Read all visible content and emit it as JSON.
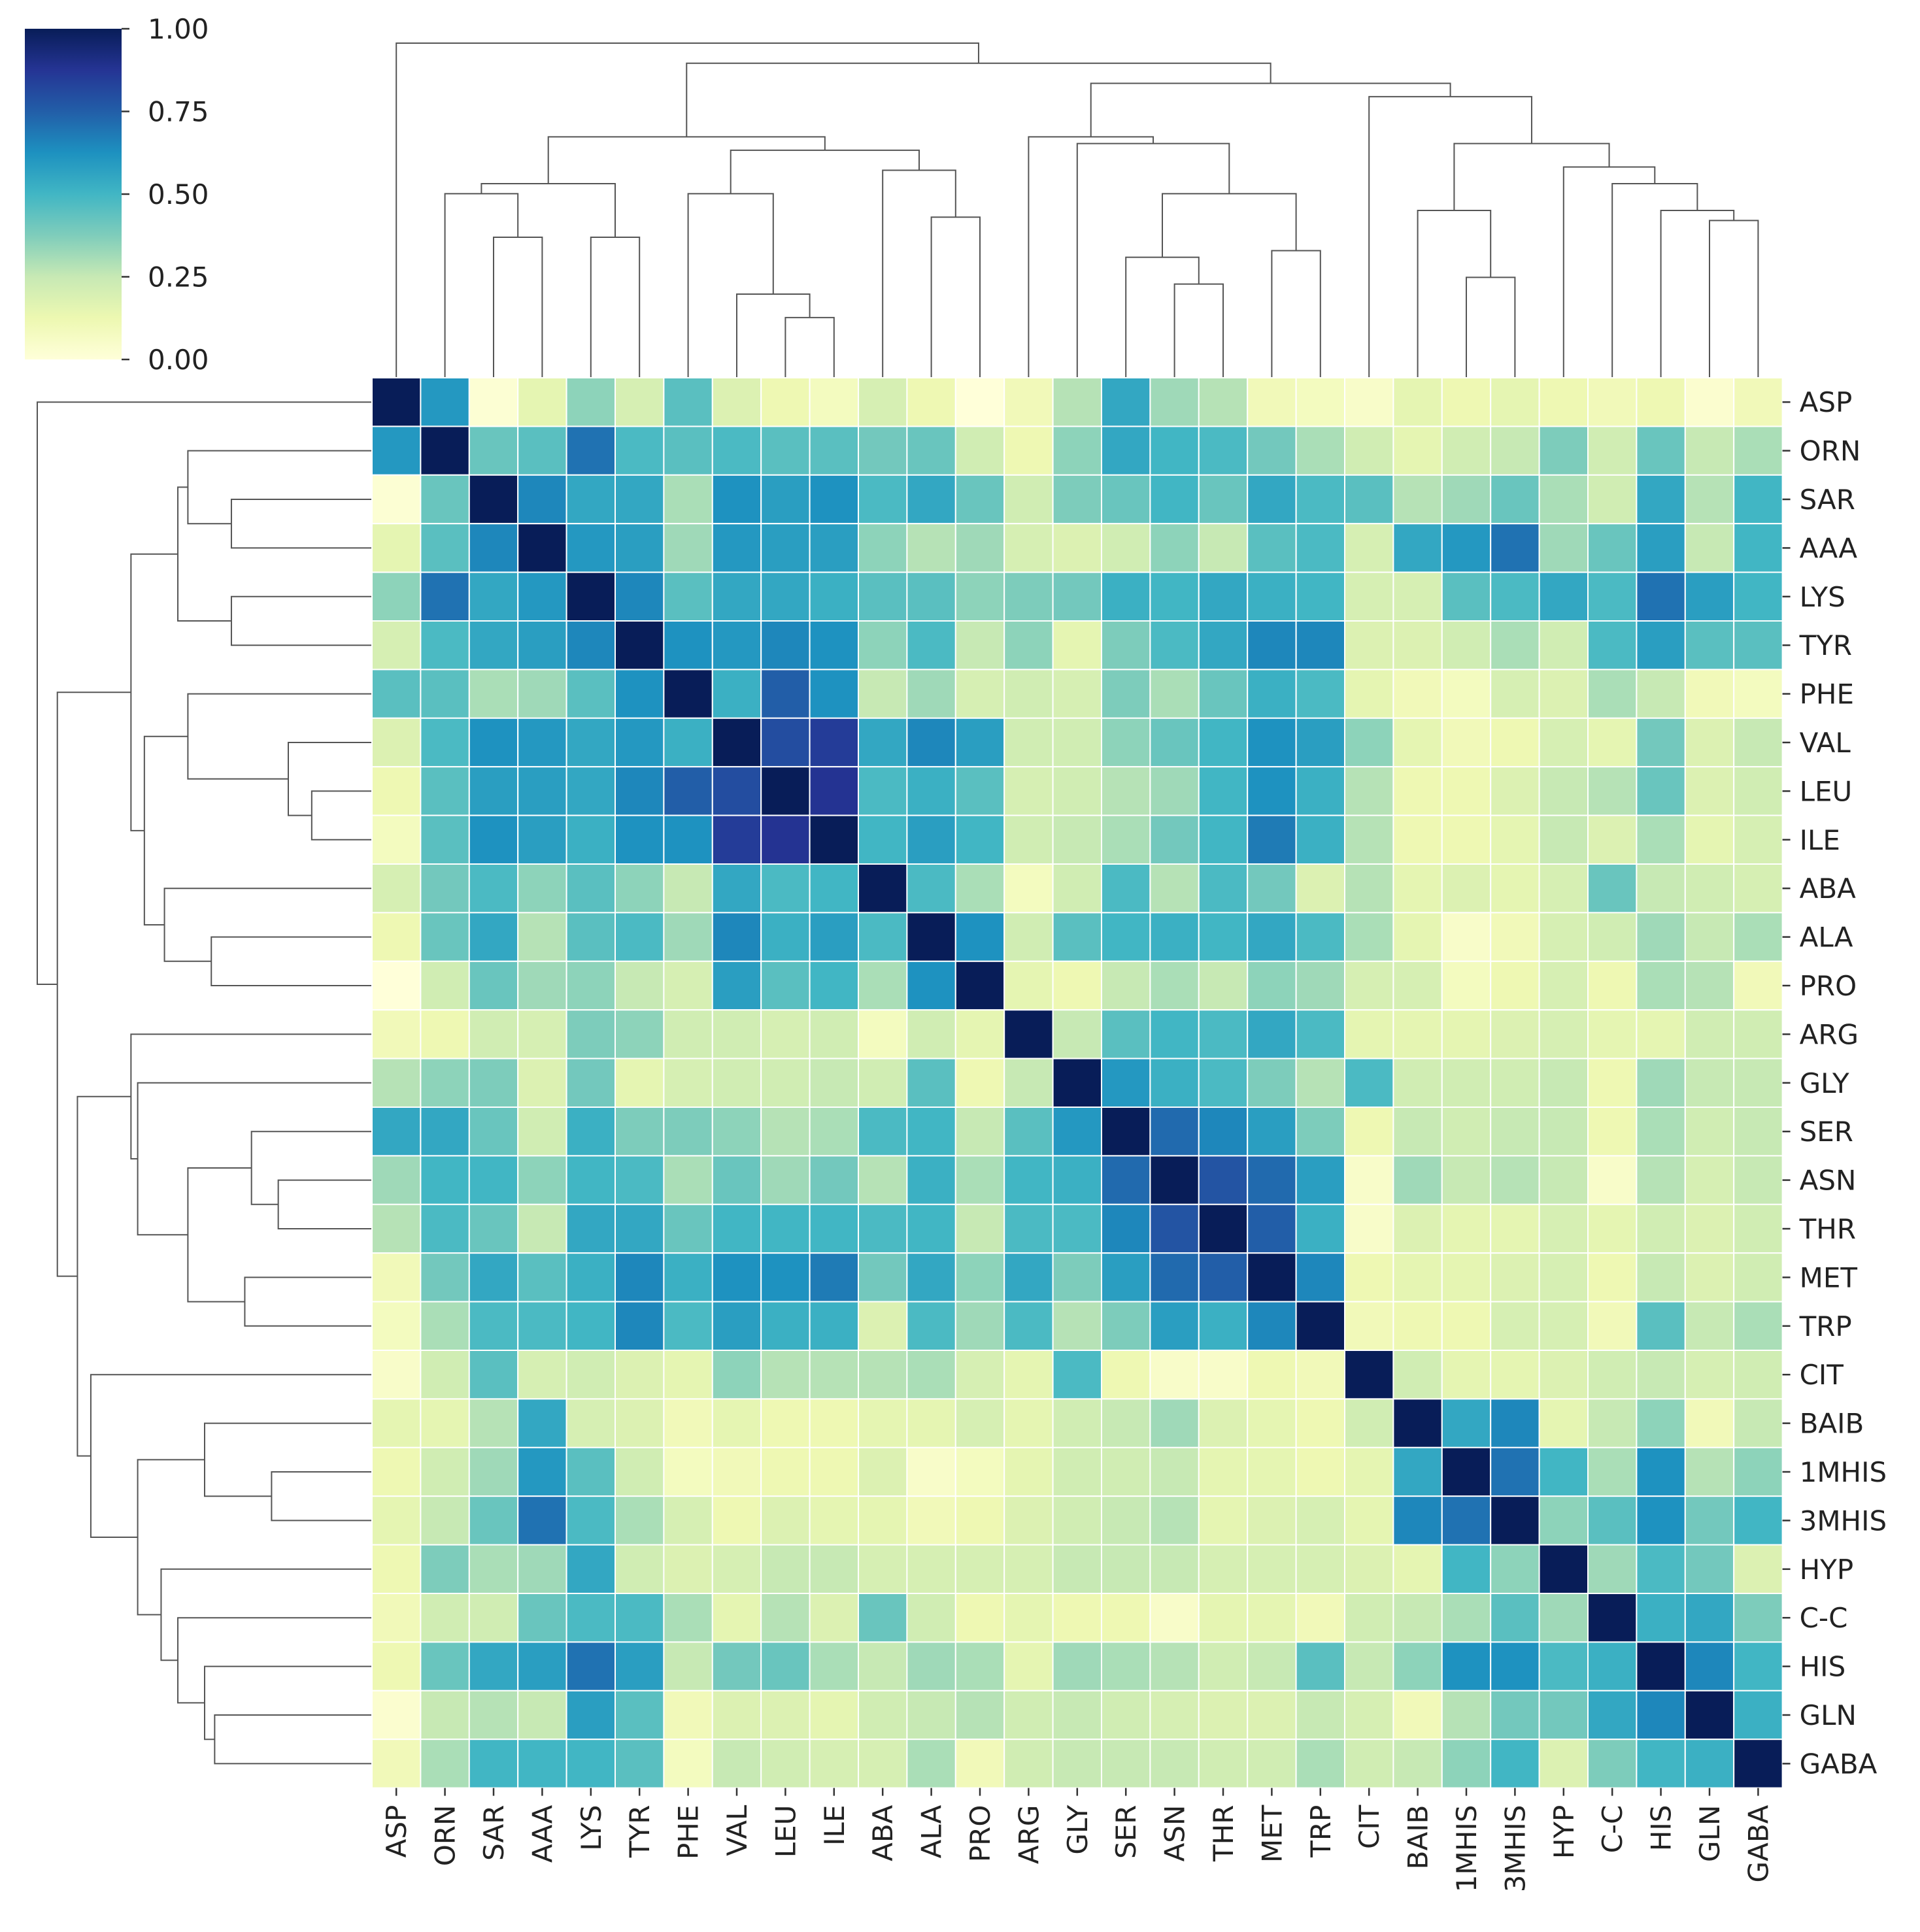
{
  "chart_data": {
    "type": "heatmap",
    "title": "",
    "xlabel": "",
    "ylabel": "",
    "colormap": "YlGnBu",
    "colorbar": {
      "min": 0.0,
      "max": 1.0,
      "ticks": [
        {
          "value": 0.0,
          "label": "0.00"
        },
        {
          "value": 0.25,
          "label": "0.25"
        },
        {
          "value": 0.5,
          "label": "0.50"
        },
        {
          "value": 0.75,
          "label": "0.75"
        },
        {
          "value": 1.0,
          "label": "1.00"
        }
      ]
    },
    "colorscale": [
      "#ffffd9",
      "#edf8b1",
      "#c7e9b4",
      "#7fcdbb",
      "#41b6c4",
      "#1d91c0",
      "#225ea8",
      "#253494",
      "#081d58"
    ],
    "dendrogram": true,
    "labels": [
      "ASP",
      "ORN",
      "SAR",
      "AAA",
      "LYS",
      "TYR",
      "PHE",
      "VAL",
      "LEU",
      "ILE",
      "ABA",
      "ALA",
      "PRO",
      "ARG",
      "GLY",
      "SER",
      "ASN",
      "THR",
      "MET",
      "TRP",
      "CIT",
      "BAIB",
      "1MHIS",
      "3MHIS",
      "HYP",
      "C-C",
      "HIS",
      "GLN",
      "GABA"
    ],
    "values": [
      [
        1.0,
        0.6,
        0.02,
        0.15,
        0.35,
        0.2,
        0.45,
        0.18,
        0.12,
        0.08,
        0.2,
        0.12,
        0.0,
        0.1,
        0.28,
        0.55,
        0.32,
        0.28,
        0.1,
        0.08,
        0.05,
        0.15,
        0.12,
        0.15,
        0.12,
        0.1,
        0.12,
        0.03,
        0.1
      ],
      [
        0.6,
        1.0,
        0.42,
        0.45,
        0.7,
        0.48,
        0.45,
        0.48,
        0.45,
        0.45,
        0.4,
        0.42,
        0.22,
        0.12,
        0.35,
        0.55,
        0.5,
        0.48,
        0.4,
        0.3,
        0.22,
        0.15,
        0.22,
        0.25,
        0.38,
        0.22,
        0.42,
        0.25,
        0.3
      ],
      [
        0.02,
        0.42,
        1.0,
        0.65,
        0.55,
        0.55,
        0.3,
        0.62,
        0.58,
        0.62,
        0.48,
        0.55,
        0.42,
        0.22,
        0.38,
        0.42,
        0.5,
        0.42,
        0.55,
        0.48,
        0.45,
        0.28,
        0.32,
        0.42,
        0.3,
        0.22,
        0.55,
        0.28,
        0.5
      ],
      [
        0.15,
        0.45,
        0.65,
        1.0,
        0.6,
        0.58,
        0.32,
        0.6,
        0.58,
        0.58,
        0.35,
        0.28,
        0.32,
        0.2,
        0.18,
        0.22,
        0.35,
        0.25,
        0.45,
        0.48,
        0.2,
        0.55,
        0.6,
        0.7,
        0.32,
        0.42,
        0.58,
        0.25,
        0.5
      ],
      [
        0.35,
        0.7,
        0.55,
        0.6,
        1.0,
        0.65,
        0.45,
        0.55,
        0.55,
        0.52,
        0.45,
        0.45,
        0.35,
        0.38,
        0.4,
        0.52,
        0.5,
        0.55,
        0.52,
        0.5,
        0.2,
        0.2,
        0.45,
        0.48,
        0.55,
        0.48,
        0.7,
        0.58,
        0.5
      ],
      [
        0.2,
        0.48,
        0.55,
        0.58,
        0.65,
        1.0,
        0.62,
        0.6,
        0.65,
        0.62,
        0.35,
        0.48,
        0.25,
        0.35,
        0.15,
        0.38,
        0.48,
        0.55,
        0.65,
        0.65,
        0.18,
        0.18,
        0.22,
        0.3,
        0.22,
        0.48,
        0.58,
        0.45,
        0.45
      ],
      [
        0.45,
        0.45,
        0.3,
        0.32,
        0.45,
        0.62,
        1.0,
        0.52,
        0.75,
        0.62,
        0.25,
        0.32,
        0.2,
        0.22,
        0.2,
        0.38,
        0.3,
        0.42,
        0.52,
        0.48,
        0.15,
        0.1,
        0.08,
        0.2,
        0.18,
        0.3,
        0.25,
        0.1,
        0.08
      ],
      [
        0.18,
        0.48,
        0.62,
        0.6,
        0.55,
        0.6,
        0.52,
        1.0,
        0.8,
        0.85,
        0.55,
        0.65,
        0.58,
        0.22,
        0.22,
        0.35,
        0.42,
        0.5,
        0.62,
        0.58,
        0.35,
        0.15,
        0.1,
        0.12,
        0.2,
        0.15,
        0.4,
        0.18,
        0.25
      ],
      [
        0.12,
        0.45,
        0.58,
        0.58,
        0.55,
        0.65,
        0.75,
        0.8,
        1.0,
        0.88,
        0.48,
        0.52,
        0.45,
        0.2,
        0.22,
        0.28,
        0.32,
        0.5,
        0.62,
        0.52,
        0.28,
        0.12,
        0.12,
        0.18,
        0.25,
        0.28,
        0.42,
        0.18,
        0.22
      ],
      [
        0.08,
        0.45,
        0.62,
        0.58,
        0.52,
        0.62,
        0.62,
        0.85,
        0.88,
        1.0,
        0.5,
        0.58,
        0.5,
        0.22,
        0.25,
        0.3,
        0.4,
        0.5,
        0.68,
        0.52,
        0.28,
        0.12,
        0.12,
        0.15,
        0.25,
        0.18,
        0.3,
        0.15,
        0.2
      ],
      [
        0.2,
        0.4,
        0.48,
        0.35,
        0.45,
        0.35,
        0.25,
        0.55,
        0.48,
        0.5,
        1.0,
        0.48,
        0.3,
        0.08,
        0.22,
        0.48,
        0.28,
        0.48,
        0.4,
        0.18,
        0.28,
        0.15,
        0.18,
        0.15,
        0.2,
        0.42,
        0.25,
        0.22,
        0.2
      ],
      [
        0.12,
        0.42,
        0.55,
        0.28,
        0.45,
        0.48,
        0.32,
        0.65,
        0.52,
        0.58,
        0.48,
        1.0,
        0.62,
        0.22,
        0.45,
        0.5,
        0.52,
        0.5,
        0.55,
        0.48,
        0.3,
        0.15,
        0.05,
        0.1,
        0.2,
        0.22,
        0.32,
        0.25,
        0.3
      ],
      [
        0.0,
        0.22,
        0.42,
        0.32,
        0.35,
        0.25,
        0.2,
        0.58,
        0.45,
        0.5,
        0.3,
        0.62,
        1.0,
        0.15,
        0.12,
        0.25,
        0.3,
        0.25,
        0.35,
        0.32,
        0.2,
        0.2,
        0.08,
        0.12,
        0.2,
        0.12,
        0.3,
        0.28,
        0.1
      ],
      [
        0.1,
        0.12,
        0.22,
        0.2,
        0.38,
        0.35,
        0.22,
        0.22,
        0.2,
        0.22,
        0.08,
        0.22,
        0.15,
        1.0,
        0.25,
        0.45,
        0.5,
        0.48,
        0.55,
        0.48,
        0.15,
        0.15,
        0.15,
        0.18,
        0.2,
        0.15,
        0.15,
        0.22,
        0.22
      ],
      [
        0.28,
        0.35,
        0.38,
        0.18,
        0.4,
        0.15,
        0.2,
        0.22,
        0.22,
        0.25,
        0.22,
        0.45,
        0.12,
        0.25,
        1.0,
        0.6,
        0.52,
        0.48,
        0.38,
        0.28,
        0.48,
        0.22,
        0.22,
        0.22,
        0.25,
        0.12,
        0.32,
        0.25,
        0.25
      ],
      [
        0.55,
        0.55,
        0.42,
        0.22,
        0.52,
        0.38,
        0.38,
        0.35,
        0.28,
        0.3,
        0.48,
        0.5,
        0.25,
        0.45,
        0.6,
        1.0,
        0.72,
        0.65,
        0.58,
        0.38,
        0.12,
        0.25,
        0.22,
        0.25,
        0.25,
        0.12,
        0.3,
        0.22,
        0.25
      ],
      [
        0.32,
        0.5,
        0.5,
        0.35,
        0.5,
        0.48,
        0.3,
        0.42,
        0.32,
        0.4,
        0.28,
        0.52,
        0.3,
        0.5,
        0.52,
        0.72,
        1.0,
        0.78,
        0.72,
        0.58,
        0.05,
        0.32,
        0.25,
        0.28,
        0.25,
        0.05,
        0.28,
        0.2,
        0.25
      ],
      [
        0.28,
        0.48,
        0.42,
        0.25,
        0.55,
        0.55,
        0.42,
        0.5,
        0.5,
        0.5,
        0.48,
        0.5,
        0.25,
        0.48,
        0.48,
        0.65,
        0.78,
        1.0,
        0.75,
        0.52,
        0.05,
        0.18,
        0.15,
        0.15,
        0.2,
        0.15,
        0.22,
        0.18,
        0.22
      ],
      [
        0.1,
        0.4,
        0.55,
        0.45,
        0.52,
        0.65,
        0.52,
        0.62,
        0.62,
        0.68,
        0.4,
        0.55,
        0.35,
        0.55,
        0.38,
        0.58,
        0.72,
        0.75,
        1.0,
        0.65,
        0.12,
        0.15,
        0.15,
        0.18,
        0.2,
        0.12,
        0.25,
        0.18,
        0.22
      ],
      [
        0.08,
        0.3,
        0.48,
        0.48,
        0.5,
        0.65,
        0.48,
        0.58,
        0.52,
        0.52,
        0.18,
        0.48,
        0.32,
        0.48,
        0.28,
        0.38,
        0.58,
        0.52,
        0.65,
        1.0,
        0.1,
        0.12,
        0.12,
        0.2,
        0.2,
        0.1,
        0.45,
        0.25,
        0.3
      ],
      [
        0.05,
        0.22,
        0.45,
        0.2,
        0.22,
        0.18,
        0.15,
        0.35,
        0.28,
        0.28,
        0.28,
        0.3,
        0.2,
        0.15,
        0.48,
        0.12,
        0.05,
        0.05,
        0.12,
        0.1,
        1.0,
        0.22,
        0.15,
        0.15,
        0.18,
        0.22,
        0.25,
        0.2,
        0.22
      ],
      [
        0.15,
        0.15,
        0.28,
        0.55,
        0.2,
        0.18,
        0.1,
        0.15,
        0.12,
        0.12,
        0.15,
        0.15,
        0.2,
        0.15,
        0.22,
        0.25,
        0.32,
        0.18,
        0.15,
        0.12,
        0.22,
        1.0,
        0.55,
        0.65,
        0.15,
        0.25,
        0.35,
        0.1,
        0.25
      ],
      [
        0.12,
        0.22,
        0.32,
        0.6,
        0.45,
        0.22,
        0.08,
        0.1,
        0.12,
        0.12,
        0.18,
        0.05,
        0.08,
        0.15,
        0.22,
        0.22,
        0.25,
        0.15,
        0.15,
        0.12,
        0.15,
        0.55,
        1.0,
        0.7,
        0.5,
        0.3,
        0.62,
        0.28,
        0.35
      ],
      [
        0.15,
        0.25,
        0.42,
        0.7,
        0.48,
        0.3,
        0.2,
        0.12,
        0.18,
        0.15,
        0.15,
        0.1,
        0.12,
        0.18,
        0.22,
        0.25,
        0.28,
        0.15,
        0.18,
        0.2,
        0.15,
        0.65,
        0.7,
        1.0,
        0.35,
        0.45,
        0.62,
        0.4,
        0.5
      ],
      [
        0.12,
        0.38,
        0.3,
        0.32,
        0.55,
        0.22,
        0.18,
        0.2,
        0.25,
        0.25,
        0.2,
        0.2,
        0.2,
        0.2,
        0.25,
        0.25,
        0.25,
        0.2,
        0.2,
        0.2,
        0.18,
        0.15,
        0.5,
        0.35,
        1.0,
        0.32,
        0.48,
        0.4,
        0.18
      ],
      [
        0.1,
        0.22,
        0.22,
        0.42,
        0.48,
        0.48,
        0.3,
        0.15,
        0.28,
        0.18,
        0.42,
        0.22,
        0.12,
        0.15,
        0.12,
        0.12,
        0.05,
        0.15,
        0.15,
        0.1,
        0.22,
        0.25,
        0.3,
        0.45,
        0.32,
        1.0,
        0.52,
        0.55,
        0.38
      ],
      [
        0.12,
        0.42,
        0.55,
        0.58,
        0.7,
        0.58,
        0.25,
        0.4,
        0.42,
        0.3,
        0.25,
        0.32,
        0.3,
        0.15,
        0.32,
        0.3,
        0.28,
        0.22,
        0.25,
        0.45,
        0.25,
        0.35,
        0.62,
        0.62,
        0.48,
        0.52,
        1.0,
        0.65,
        0.5
      ],
      [
        0.03,
        0.25,
        0.28,
        0.25,
        0.58,
        0.45,
        0.1,
        0.18,
        0.18,
        0.15,
        0.22,
        0.25,
        0.28,
        0.22,
        0.25,
        0.22,
        0.2,
        0.18,
        0.18,
        0.25,
        0.2,
        0.1,
        0.28,
        0.4,
        0.4,
        0.55,
        0.65,
        1.0,
        0.52
      ],
      [
        0.1,
        0.3,
        0.5,
        0.5,
        0.5,
        0.45,
        0.08,
        0.25,
        0.22,
        0.2,
        0.2,
        0.3,
        0.1,
        0.22,
        0.25,
        0.25,
        0.25,
        0.22,
        0.22,
        0.3,
        0.22,
        0.25,
        0.35,
        0.5,
        0.18,
        0.38,
        0.5,
        0.52,
        1.0
      ]
    ]
  }
}
